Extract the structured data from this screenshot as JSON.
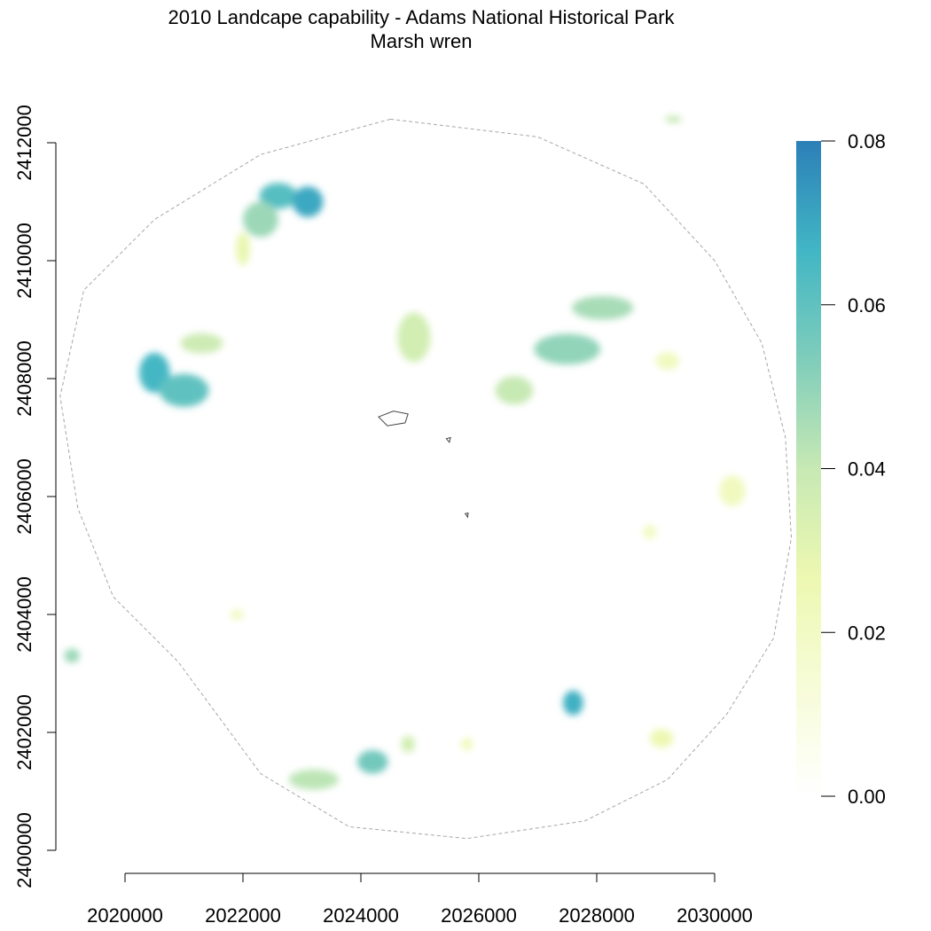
{
  "title": {
    "line1": "2010 Landcape capability - Adams National Historical Park",
    "line2": "Marsh wren"
  },
  "x_axis": {
    "ticks": [
      {
        "value": 2020000,
        "label": "2020000"
      },
      {
        "value": 2022000,
        "label": "2022000"
      },
      {
        "value": 2024000,
        "label": "2024000"
      },
      {
        "value": 2026000,
        "label": "2026000"
      },
      {
        "value": 2028000,
        "label": "2028000"
      },
      {
        "value": 2030000,
        "label": "2030000"
      }
    ]
  },
  "y_axis": {
    "ticks": [
      {
        "value": 2400000,
        "label": "2400000"
      },
      {
        "value": 2402000,
        "label": "2402000"
      },
      {
        "value": 2404000,
        "label": "2404000"
      },
      {
        "value": 2406000,
        "label": "2406000"
      },
      {
        "value": 2408000,
        "label": "2408000"
      },
      {
        "value": 2410000,
        "label": "2410000"
      },
      {
        "value": 2412000,
        "label": "2412000"
      }
    ]
  },
  "legend": {
    "ticks": [
      {
        "value": 0.0,
        "label": "0.00"
      },
      {
        "value": 0.02,
        "label": "0.02"
      },
      {
        "value": 0.04,
        "label": "0.04"
      },
      {
        "value": 0.06,
        "label": "0.06"
      },
      {
        "value": 0.08,
        "label": "0.08"
      }
    ],
    "range": [
      0.0,
      0.08
    ],
    "colors": [
      "#ffffff",
      "#f7fcd8",
      "#edf8b1",
      "#c7e9b4",
      "#7fcdbb",
      "#41b6c4",
      "#2c7fb8"
    ]
  },
  "styles": {
    "buffer_boundary_color": "#a6a6a6",
    "park_boundary_color": "#444444"
  },
  "map_data": {
    "buffer_boundary": [
      [
        2024500,
        2412400
      ],
      [
        2027000,
        2412100
      ],
      [
        2028800,
        2411300
      ],
      [
        2030000,
        2410000
      ],
      [
        2030800,
        2408600
      ],
      [
        2031200,
        2407000
      ],
      [
        2031300,
        2405300
      ],
      [
        2031000,
        2403600
      ],
      [
        2030200,
        2402300
      ],
      [
        2029200,
        2401200
      ],
      [
        2027800,
        2400500
      ],
      [
        2025800,
        2400200
      ],
      [
        2023800,
        2400400
      ],
      [
        2022300,
        2401300
      ],
      [
        2020900,
        2403200
      ],
      [
        2019800,
        2404300
      ],
      [
        2019200,
        2405800
      ],
      [
        2018900,
        2407700
      ],
      [
        2019300,
        2409500
      ],
      [
        2020500,
        2410700
      ],
      [
        2022300,
        2411800
      ],
      [
        2024500,
        2412400
      ]
    ],
    "park_boundaries": [
      [
        [
          2024300,
          2407350
        ],
        [
          2024550,
          2407450
        ],
        [
          2024800,
          2407400
        ],
        [
          2024750,
          2407250
        ],
        [
          2024450,
          2407200
        ],
        [
          2024300,
          2407350
        ]
      ],
      [
        [
          2025450,
          2406980
        ],
        [
          2025520,
          2407000
        ],
        [
          2025500,
          2406920
        ],
        [
          2025450,
          2406980
        ]
      ],
      [
        [
          2025770,
          2405710
        ],
        [
          2025820,
          2405720
        ],
        [
          2025810,
          2405650
        ],
        [
          2025770,
          2405710
        ]
      ]
    ],
    "patches": [
      {
        "x": 2022600,
        "y": 2411100,
        "rx": 320,
        "ry": 220,
        "v": 0.062
      },
      {
        "x": 2023100,
        "y": 2411000,
        "rx": 260,
        "ry": 260,
        "v": 0.07
      },
      {
        "x": 2022300,
        "y": 2410700,
        "rx": 300,
        "ry": 300,
        "v": 0.048
      },
      {
        "x": 2022000,
        "y": 2410200,
        "rx": 120,
        "ry": 280,
        "v": 0.028
      },
      {
        "x": 2020500,
        "y": 2408100,
        "rx": 260,
        "ry": 340,
        "v": 0.066
      },
      {
        "x": 2021000,
        "y": 2407800,
        "rx": 420,
        "ry": 280,
        "v": 0.06
      },
      {
        "x": 2021300,
        "y": 2408600,
        "rx": 360,
        "ry": 170,
        "v": 0.038
      },
      {
        "x": 2024900,
        "y": 2408700,
        "rx": 280,
        "ry": 420,
        "v": 0.036
      },
      {
        "x": 2026600,
        "y": 2407800,
        "rx": 320,
        "ry": 240,
        "v": 0.04
      },
      {
        "x": 2027500,
        "y": 2408500,
        "rx": 560,
        "ry": 260,
        "v": 0.05
      },
      {
        "x": 2028100,
        "y": 2409200,
        "rx": 520,
        "ry": 200,
        "v": 0.046
      },
      {
        "x": 2029200,
        "y": 2408300,
        "rx": 200,
        "ry": 150,
        "v": 0.022
      },
      {
        "x": 2030300,
        "y": 2406100,
        "rx": 220,
        "ry": 260,
        "v": 0.022
      },
      {
        "x": 2028900,
        "y": 2405400,
        "rx": 120,
        "ry": 120,
        "v": 0.02
      },
      {
        "x": 2027600,
        "y": 2402500,
        "rx": 170,
        "ry": 210,
        "v": 0.068
      },
      {
        "x": 2024200,
        "y": 2401500,
        "rx": 260,
        "ry": 200,
        "v": 0.056
      },
      {
        "x": 2023200,
        "y": 2401200,
        "rx": 420,
        "ry": 170,
        "v": 0.042
      },
      {
        "x": 2024800,
        "y": 2401800,
        "rx": 120,
        "ry": 140,
        "v": 0.036
      },
      {
        "x": 2025800,
        "y": 2401800,
        "rx": 100,
        "ry": 100,
        "v": 0.024
      },
      {
        "x": 2029100,
        "y": 2401900,
        "rx": 200,
        "ry": 160,
        "v": 0.026
      },
      {
        "x": 2019100,
        "y": 2403300,
        "rx": 130,
        "ry": 120,
        "v": 0.048
      },
      {
        "x": 2021900,
        "y": 2404000,
        "rx": 120,
        "ry": 90,
        "v": 0.02
      },
      {
        "x": 2029300,
        "y": 2412400,
        "rx": 140,
        "ry": 60,
        "v": 0.04
      }
    ]
  }
}
